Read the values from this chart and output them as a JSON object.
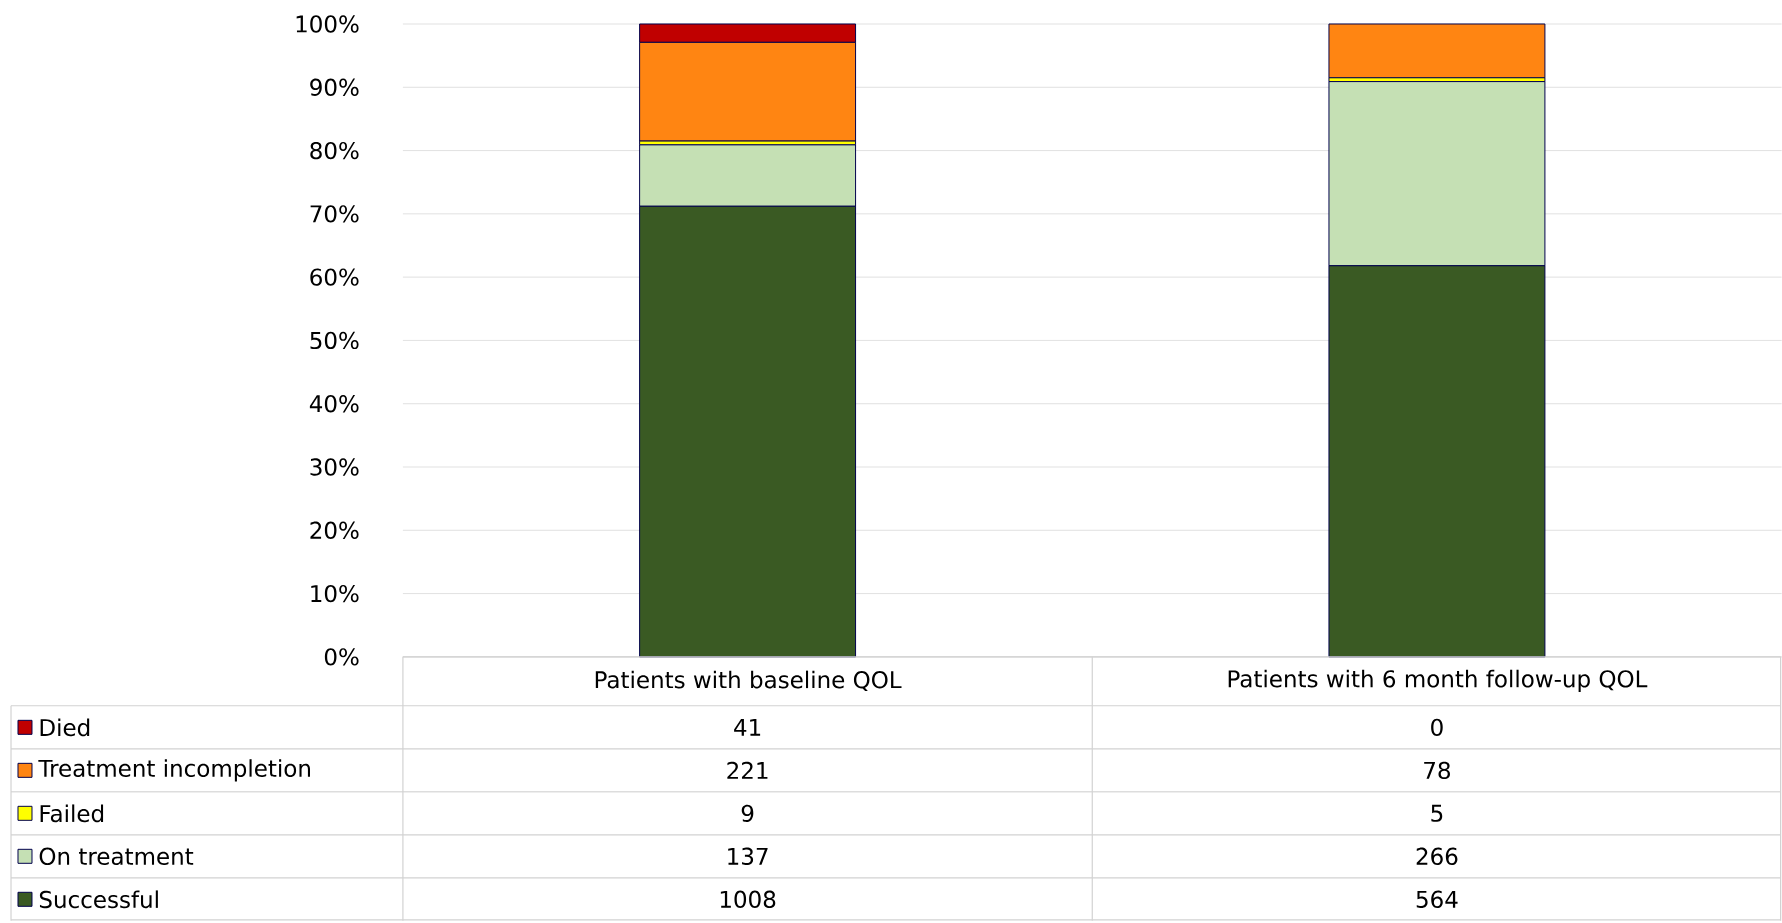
{
  "chart_data": {
    "type": "bar",
    "stacked": true,
    "categories": [
      "Patients with baseline QOL",
      "Patients with 6 month follow-up QOL"
    ],
    "series": [
      {
        "name": "Successful",
        "color": "#3a5a23",
        "values": [
          71.2,
          61.8
        ]
      },
      {
        "name": "On treatment",
        "color": "#c5e0b4",
        "values": [
          9.7,
          29.1
        ]
      },
      {
        "name": "Failed",
        "color": "#ffff00",
        "values": [
          0.6,
          0.6
        ]
      },
      {
        "name": "Treatment incompletion",
        "color": "#ff8512",
        "values": [
          15.6,
          8.5
        ]
      },
      {
        "name": "Died",
        "color": "#c00000",
        "values": [
          2.9,
          0
        ]
      }
    ],
    "annotations": [
      "41",
      "0",
      "221",
      "78",
      "9",
      "5",
      "137",
      "266",
      "1008",
      "564"
    ],
    "ylim": [
      0,
      100
    ],
    "yticks": [
      {
        "value": 0,
        "label": "0%"
      },
      {
        "value": 10,
        "label": "10%"
      },
      {
        "value": 20,
        "label": "20%"
      },
      {
        "value": 30,
        "label": "30%"
      },
      {
        "value": 40,
        "label": "40%"
      },
      {
        "value": 50,
        "label": "50%"
      },
      {
        "value": 60,
        "label": "60%"
      },
      {
        "value": 70,
        "label": "70%"
      },
      {
        "value": 80,
        "label": "80%"
      },
      {
        "value": 90,
        "label": "90%"
      },
      {
        "value": 100,
        "label": "100%"
      }
    ],
    "grid": "y",
    "legend": "bottom left"
  }
}
